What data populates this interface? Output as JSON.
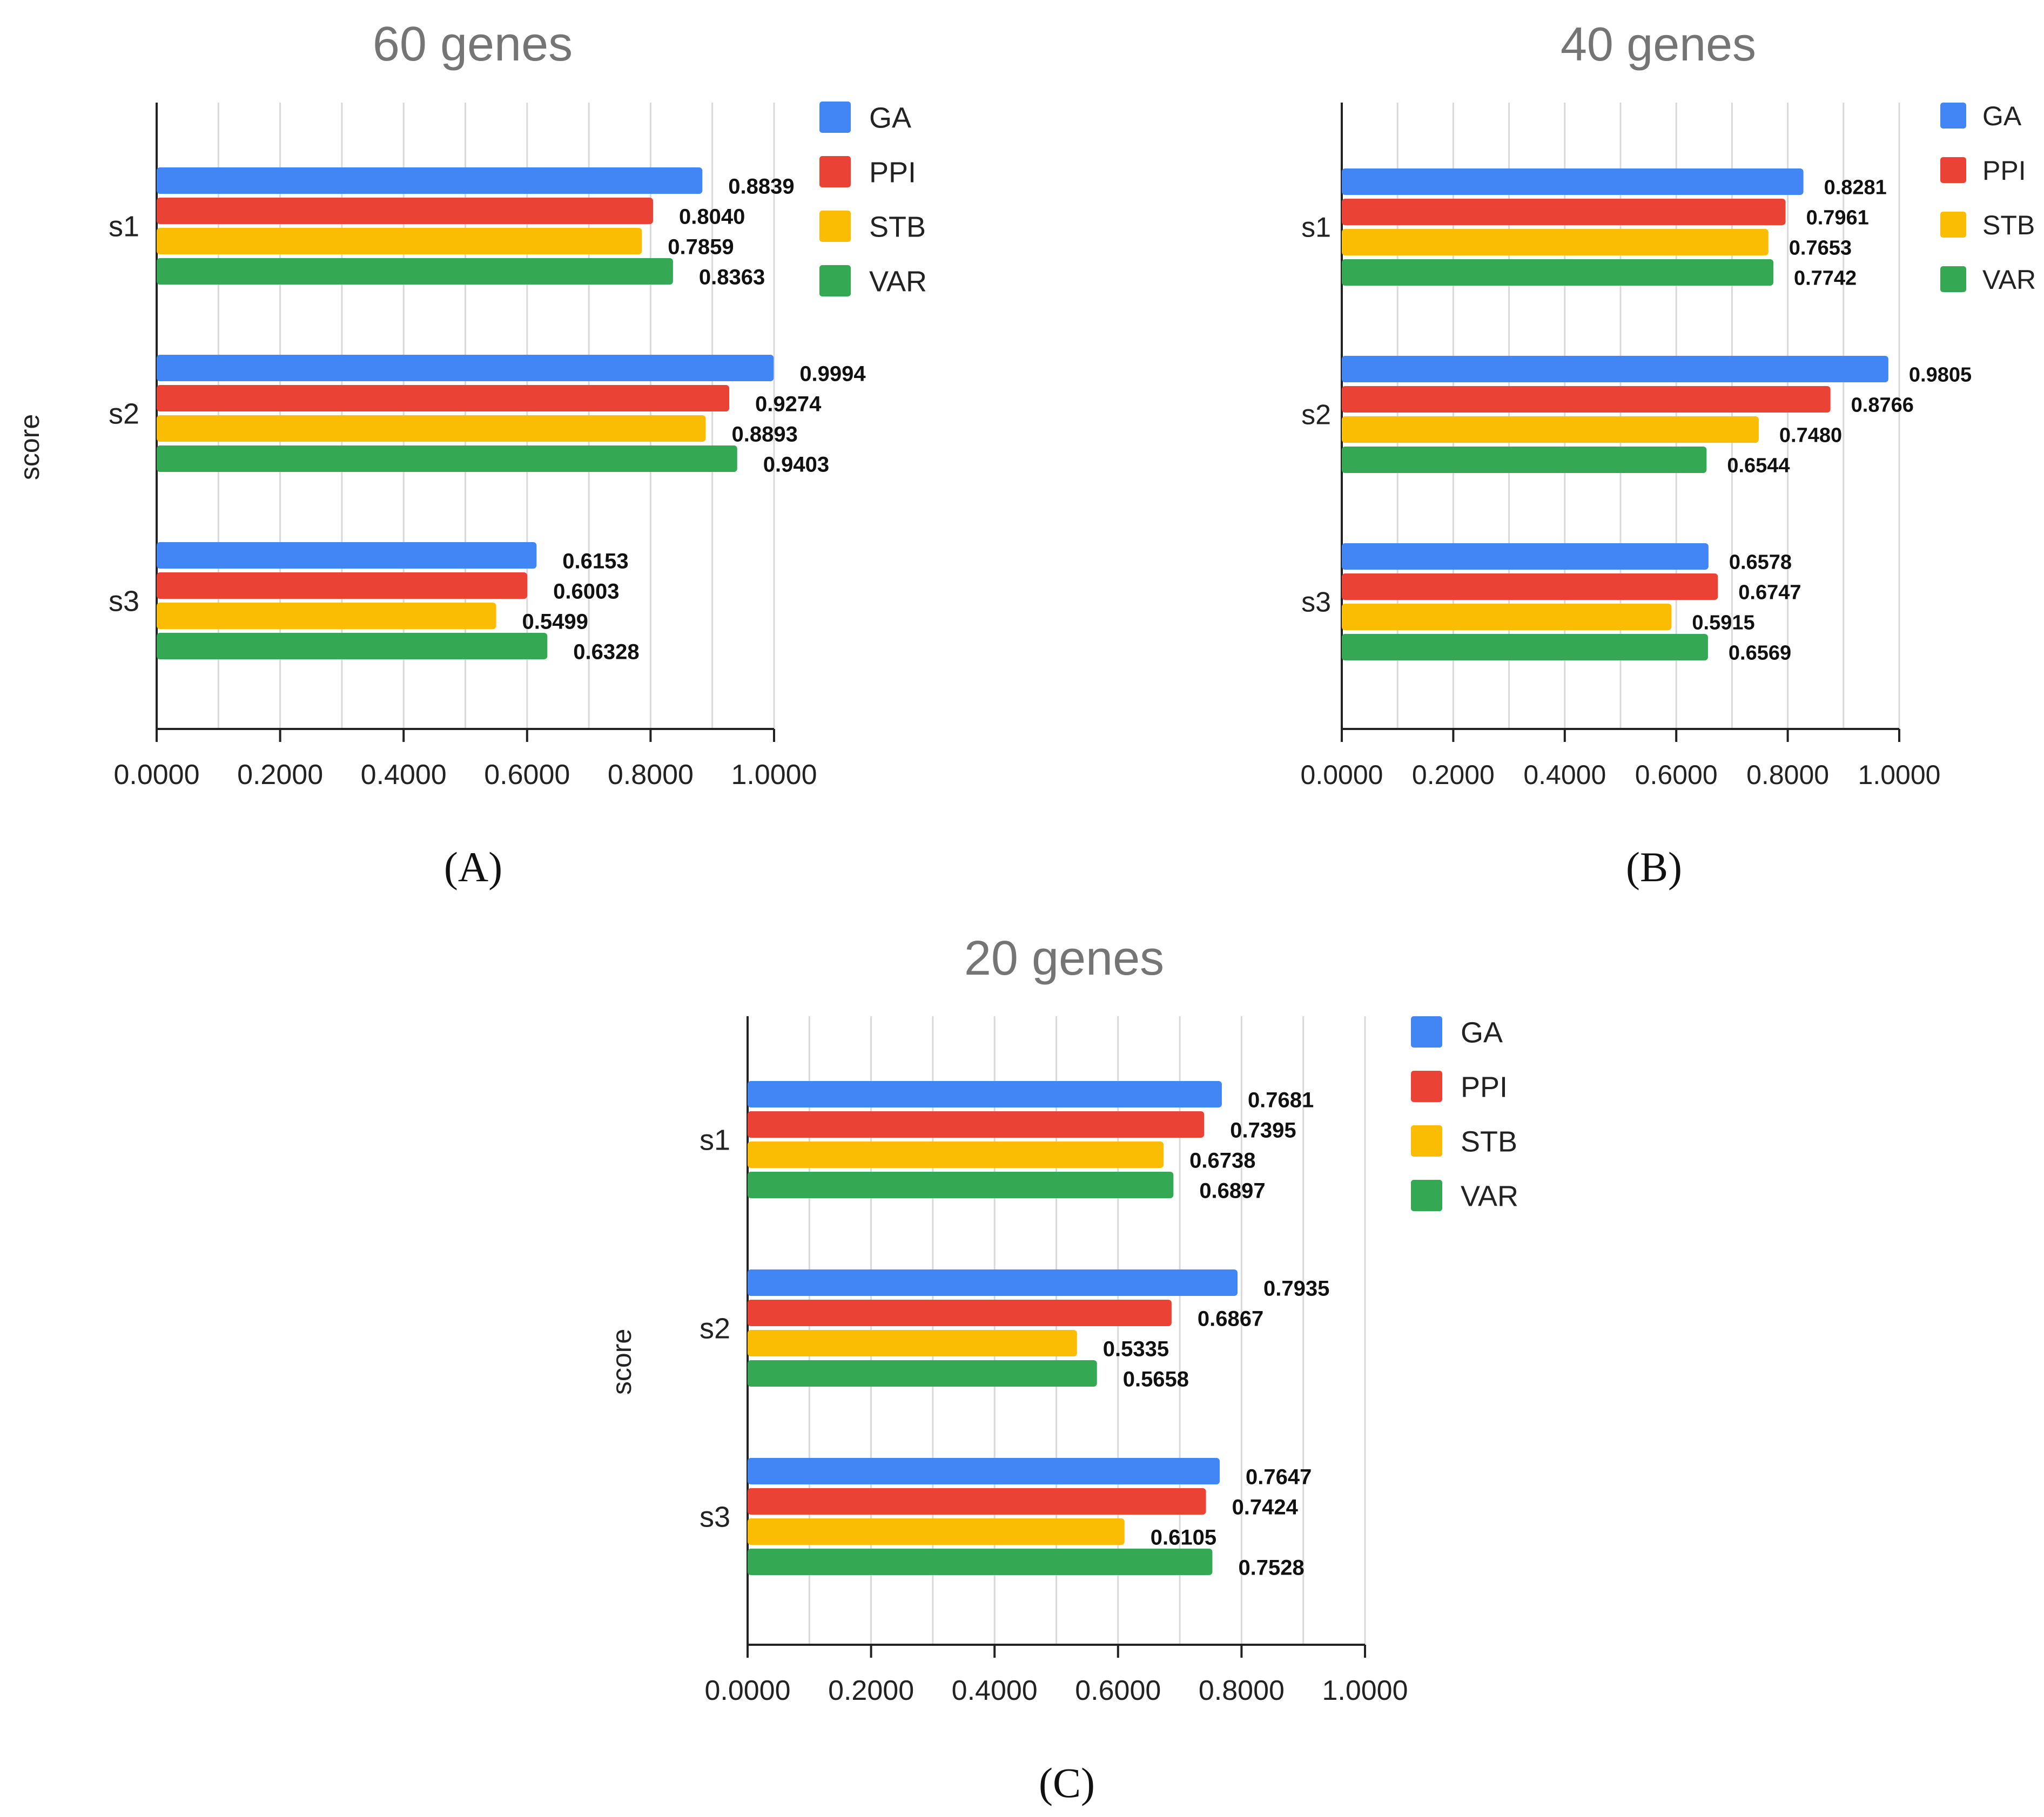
{
  "colors": {
    "GA": "#4285F4",
    "PPI": "#EA4335",
    "STB": "#FBBC04",
    "VAR": "#34A853"
  },
  "chart_data": [
    {
      "type": "bar",
      "orientation": "horizontal",
      "panel_label": "A",
      "title": "60 genes",
      "ylabel": "score",
      "xlabel": "",
      "xlim": [
        0,
        1
      ],
      "xticks": [
        "0.0000",
        "0.2000",
        "0.4000",
        "0.6000",
        "0.8000",
        "1.0000"
      ],
      "categories": [
        "s1",
        "s2",
        "s3"
      ],
      "legend_position": "top-right",
      "series": [
        {
          "name": "GA",
          "values": [
            0.8839,
            0.9994,
            0.6153
          ],
          "labels": [
            "0.8839",
            "0.9994",
            "0.6153"
          ]
        },
        {
          "name": "PPI",
          "values": [
            0.804,
            0.9274,
            0.6003
          ],
          "labels": [
            "0.8040",
            "0.9274",
            "0.6003"
          ]
        },
        {
          "name": "STB",
          "values": [
            0.7859,
            0.8893,
            0.5499
          ],
          "labels": [
            "0.7859",
            "0.8893",
            "0.5499"
          ]
        },
        {
          "name": "VAR",
          "values": [
            0.8363,
            0.9403,
            0.6328
          ],
          "labels": [
            "0.8363",
            "0.9403",
            "0.6328"
          ]
        }
      ]
    },
    {
      "type": "bar",
      "orientation": "horizontal",
      "panel_label": "B",
      "title": "40 genes",
      "ylabel": "",
      "xlabel": "",
      "xlim": [
        0,
        1
      ],
      "xticks": [
        "0.0000",
        "0.2000",
        "0.4000",
        "0.6000",
        "0.8000",
        "1.0000"
      ],
      "categories": [
        "s1",
        "s2",
        "s3"
      ],
      "legend_position": "top-right",
      "series": [
        {
          "name": "GA",
          "values": [
            0.8281,
            0.9805,
            0.6578
          ],
          "labels": [
            "0.8281",
            "0.9805",
            "0.6578"
          ]
        },
        {
          "name": "PPI",
          "values": [
            0.7961,
            0.8766,
            0.6747
          ],
          "labels": [
            "0.7961",
            "0.8766",
            "0.6747"
          ]
        },
        {
          "name": "STB",
          "values": [
            0.7653,
            0.748,
            0.5915
          ],
          "labels": [
            "0.7653",
            "0.7480",
            "0.5915"
          ]
        },
        {
          "name": "VAR",
          "values": [
            0.7742,
            0.6544,
            0.6569
          ],
          "labels": [
            "0.7742",
            "0.6544",
            "0.6569"
          ]
        }
      ]
    },
    {
      "type": "bar",
      "orientation": "horizontal",
      "panel_label": "C",
      "title": "20 genes",
      "ylabel": "score",
      "xlabel": "",
      "xlim": [
        0,
        1
      ],
      "xticks": [
        "0.0000",
        "0.2000",
        "0.4000",
        "0.6000",
        "0.8000",
        "1.0000"
      ],
      "categories": [
        "s1",
        "s2",
        "s3"
      ],
      "legend_position": "top-right",
      "series": [
        {
          "name": "GA",
          "values": [
            0.7681,
            0.7935,
            0.7647
          ],
          "labels": [
            "0.7681",
            "0.7935",
            "0.7647"
          ]
        },
        {
          "name": "PPI",
          "values": [
            0.7395,
            0.6867,
            0.7424
          ],
          "labels": [
            "0.7395",
            "0.6867",
            "0.7424"
          ]
        },
        {
          "name": "STB",
          "values": [
            0.6738,
            0.5335,
            0.6105
          ],
          "labels": [
            "0.6738",
            "0.5335",
            "0.6105"
          ]
        },
        {
          "name": "VAR",
          "values": [
            0.6897,
            0.5658,
            0.7528
          ],
          "labels": [
            "0.6897",
            "0.5658",
            "0.7528"
          ]
        }
      ]
    }
  ]
}
